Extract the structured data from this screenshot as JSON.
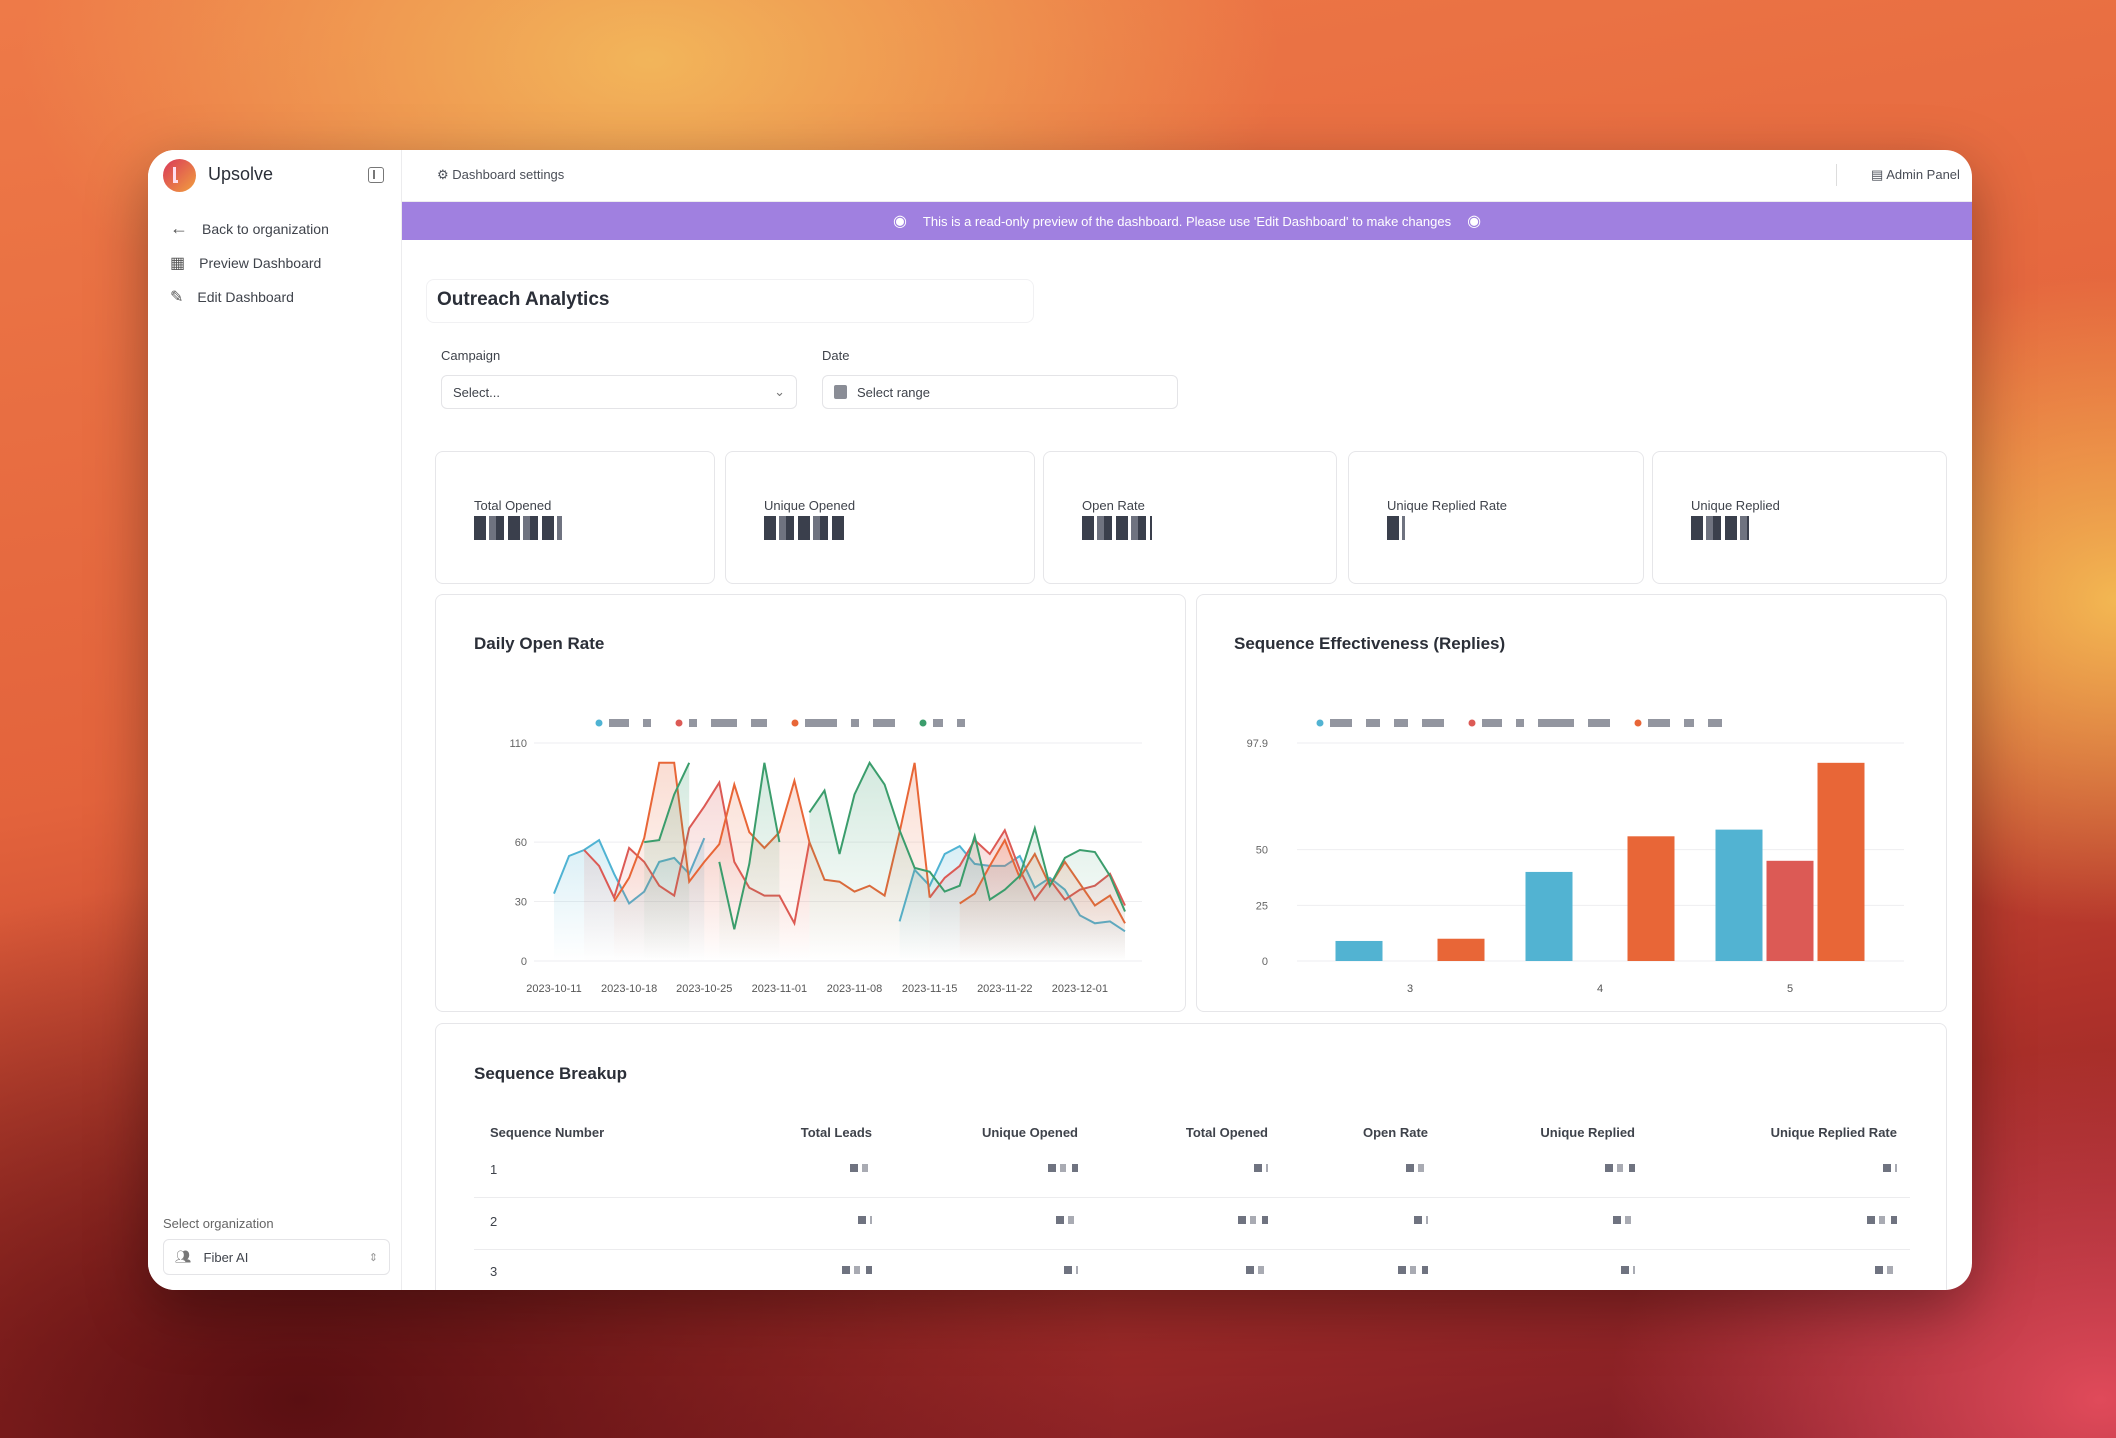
{
  "app": {
    "name": "Upsolve",
    "settings_label": "Dashboard settings",
    "admin_panel": "Admin Panel"
  },
  "sidebar": {
    "items": [
      {
        "label": "Back to organization",
        "icon": "arrow-left-icon"
      },
      {
        "label": "Preview Dashboard",
        "icon": "layout-grid-icon"
      },
      {
        "label": "Edit Dashboard",
        "icon": "edit-icon"
      }
    ],
    "org_label": "Select organization",
    "org_value": "Fiber AI"
  },
  "banner": {
    "text": "This is a read-only preview of the dashboard. Please use 'Edit Dashboard' to make changes",
    "color": "#a080e0"
  },
  "page": {
    "title": "Outreach Analytics"
  },
  "filters": {
    "campaign_label": "Campaign",
    "campaign_placeholder": "Select...",
    "date_label": "Date",
    "date_placeholder": "Select range"
  },
  "kpis": [
    {
      "label": "Total Opened"
    },
    {
      "label": "Unique Opened"
    },
    {
      "label": "Open Rate"
    },
    {
      "label": "Unique Replied Rate"
    },
    {
      "label": "Unique Replied"
    }
  ],
  "chart_data": [
    {
      "type": "line",
      "title": "Daily Open Rate",
      "ylim": [
        0,
        110
      ],
      "yticks": [
        0,
        30,
        60,
        110
      ],
      "grid": true,
      "legend": "top",
      "xticks": [
        {
          "i": 0,
          "label": "2023-10-11"
        },
        {
          "i": 5,
          "label": "2023-10-18"
        },
        {
          "i": 10,
          "label": "2023-10-25"
        },
        {
          "i": 15,
          "label": "2023-11-01"
        },
        {
          "i": 20,
          "label": "2023-11-08"
        },
        {
          "i": 25,
          "label": "2023-11-15"
        },
        {
          "i": 30,
          "label": "2023-11-22"
        },
        {
          "i": 35,
          "label": "2023-12-01"
        }
      ],
      "n": 39,
      "series": [
        {
          "color": "#4fb3d3",
          "values": [
            34,
            53,
            56,
            61,
            44,
            29,
            35,
            50,
            52,
            44,
            62,
            null,
            null,
            null,
            null,
            null,
            null,
            null,
            null,
            null,
            null,
            null,
            null,
            20,
            46,
            38,
            54,
            58,
            49,
            48,
            48,
            53,
            37,
            42,
            36,
            23,
            19,
            20,
            15
          ]
        },
        {
          "color": "#dc5a55",
          "values": [
            null,
            null,
            56,
            48,
            32,
            57,
            50,
            38,
            33,
            67,
            78,
            90,
            50,
            37,
            33,
            33,
            19,
            60,
            null,
            null,
            null,
            null,
            null,
            null,
            null,
            32,
            42,
            48,
            61,
            54,
            66,
            46,
            31,
            41,
            31,
            36,
            38,
            44,
            28
          ]
        },
        {
          "color": "#e86637",
          "values": [
            null,
            null,
            null,
            null,
            30,
            42,
            62,
            100,
            100,
            40,
            50,
            59,
            89,
            65,
            57,
            65,
            91,
            60,
            41,
            40,
            35,
            38,
            33,
            65,
            100,
            32,
            null,
            29,
            34,
            48,
            61,
            42,
            54,
            38,
            50,
            39,
            28,
            33,
            19
          ]
        },
        {
          "color": "#3b9d6c",
          "values": [
            null,
            null,
            null,
            null,
            null,
            null,
            60,
            61,
            84,
            100,
            null,
            50,
            16,
            49,
            100,
            60,
            null,
            75,
            86,
            54,
            84,
            100,
            89,
            66,
            47,
            45,
            35,
            38,
            63,
            31,
            36,
            43,
            67,
            38,
            52,
            56,
            55,
            43,
            25
          ]
        }
      ]
    },
    {
      "type": "bar",
      "title": "Sequence Effectiveness (Replies)",
      "ylim": [
        0,
        97.9
      ],
      "yticks": [
        0,
        25,
        50,
        97.9
      ],
      "grid": true,
      "legend": "top",
      "categories": [
        "3",
        "4",
        "5"
      ],
      "series": [
        {
          "color": "#52b3d2",
          "values": [
            9,
            40,
            59
          ]
        },
        {
          "color": "#dc5a55",
          "values": [
            0,
            0,
            45
          ]
        },
        {
          "color": "#e86637",
          "values": [
            10,
            56,
            89
          ]
        }
      ]
    }
  ],
  "table": {
    "title": "Sequence Breakup",
    "columns": [
      "Sequence Number",
      "Total Leads",
      "Unique Opened",
      "Total Opened",
      "Open Rate",
      "Unique Replied",
      "Unique Replied Rate"
    ],
    "rows": [
      "1",
      "2",
      "3"
    ]
  }
}
